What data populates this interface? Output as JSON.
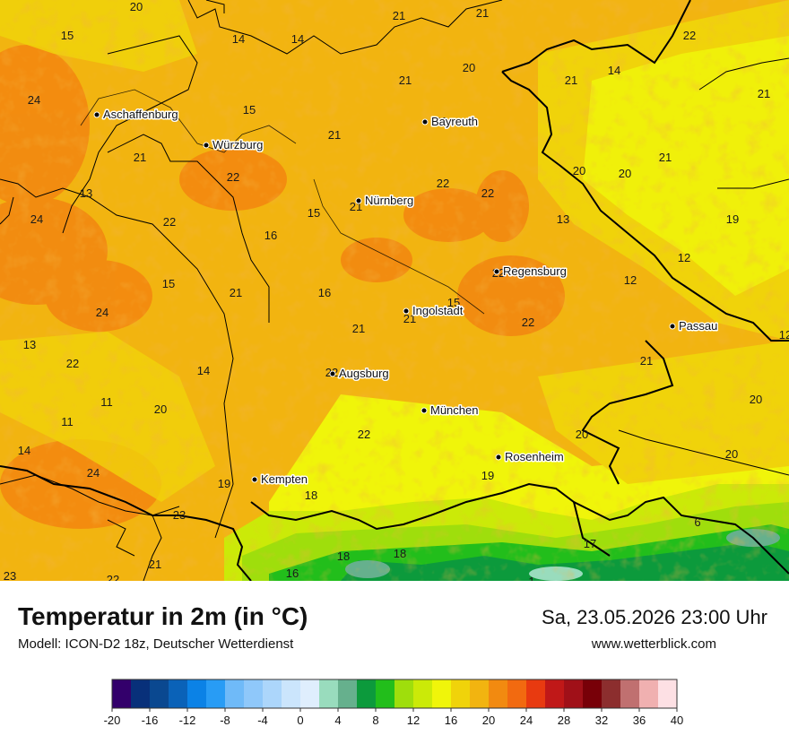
{
  "title": "Temperatur in 2m (in °C)",
  "model": "Modell: ICON-D2 18z, Deutscher Wetterdienst",
  "datetime": "Sa, 23.05.2026 23:00 Uhr",
  "website": "www.wetterblick.com",
  "cities": [
    {
      "name": "Aschaffenburg"
    },
    {
      "name": "Würzburg"
    },
    {
      "name": "Bayreuth"
    },
    {
      "name": "Nürnberg"
    },
    {
      "name": "Regensburg"
    },
    {
      "name": "Ingolstadt"
    },
    {
      "name": "Passau"
    },
    {
      "name": "Augsburg"
    },
    {
      "name": "München"
    },
    {
      "name": "Rosenheim"
    },
    {
      "name": "Kempten"
    }
  ],
  "temperature_labels": [
    "20",
    "21",
    "21",
    "14",
    "14",
    "15",
    "22",
    "20",
    "21",
    "14",
    "21",
    "24",
    "15",
    "21",
    "20",
    "21",
    "22",
    "21",
    "20",
    "20",
    "21",
    "13",
    "21",
    "22",
    "22",
    "24",
    "22",
    "15",
    "16",
    "13",
    "19",
    "24",
    "15",
    "21",
    "16",
    "12",
    "12",
    "22",
    "21",
    "15",
    "21",
    "22",
    "13",
    "22",
    "14",
    "11",
    "20",
    "11",
    "14",
    "22",
    "21",
    "20",
    "20",
    "20",
    "24",
    "19",
    "19",
    "18",
    "23",
    "6",
    "17",
    "21",
    "18",
    "18",
    "16",
    "23",
    "22",
    "1",
    "12",
    "22"
  ],
  "legend": {
    "ticks": [
      "-20",
      "-16",
      "-12",
      "-8",
      "-4",
      "0",
      "4",
      "8",
      "12",
      "16",
      "20",
      "24",
      "28",
      "32",
      "36",
      "40"
    ],
    "colors": [
      "#33006b",
      "#08307a",
      "#0a4890",
      "#0a62b8",
      "#0b82e6",
      "#289cf5",
      "#6fbaf8",
      "#8fc8fa",
      "#acd6fb",
      "#cbe5fc",
      "#dfeefd",
      "#99dcbd",
      "#66b08d",
      "#0c9a3c",
      "#22be1b",
      "#9fde0c",
      "#cbea08",
      "#f0f50a",
      "#f0d30a",
      "#f2b410",
      "#f28a10",
      "#f26a10",
      "#e83a10",
      "#c01818",
      "#a01018",
      "#780008",
      "#8c2e2e",
      "#c07070",
      "#f0b0b0",
      "#fde0e4"
    ]
  }
}
